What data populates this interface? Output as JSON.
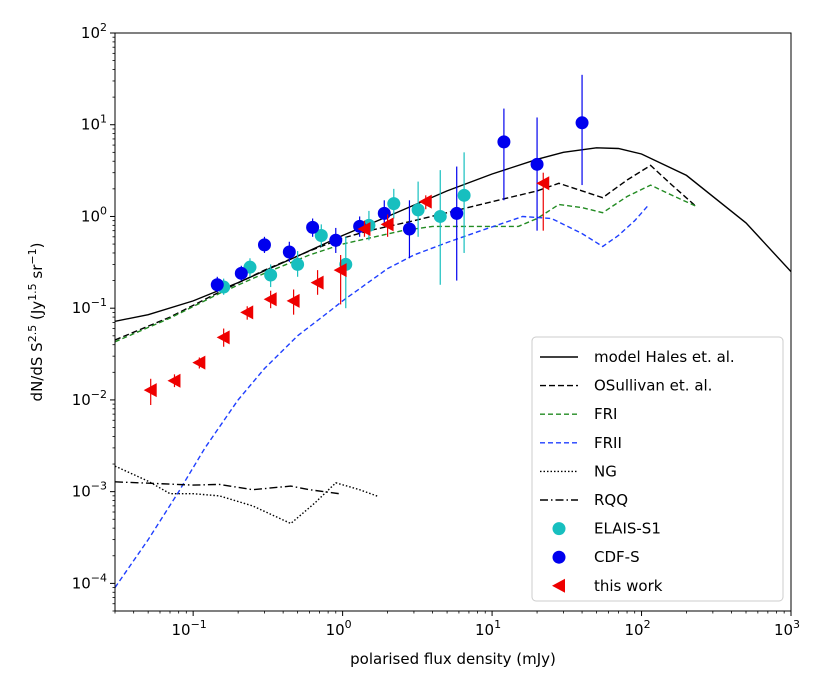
{
  "chart_data": {
    "type": "scatter",
    "x_scale": "log",
    "y_scale": "log",
    "xlim": [
      0.03,
      1000
    ],
    "ylim": [
      5e-05,
      100
    ],
    "xlabel": "polarised flux density (mJy)",
    "ylabel": "dN/dS S^2.5 (Jy^1.5 sr^-1)",
    "ylabel_parts": {
      "pre": "dN/dS S",
      "exp1": "2.5",
      "mid": " (Jy",
      "exp2": "1.5",
      "mid2": " sr",
      "exp3": "−1",
      "post": ")"
    },
    "x_ticks": [
      {
        "value": 0.1,
        "base": "10",
        "exp": "−1"
      },
      {
        "value": 1,
        "base": "10",
        "exp": "0"
      },
      {
        "value": 10,
        "base": "10",
        "exp": "1"
      },
      {
        "value": 100,
        "base": "10",
        "exp": "2"
      },
      {
        "value": 1000,
        "base": "10",
        "exp": "3"
      }
    ],
    "y_ticks": [
      {
        "value": 0.0001,
        "base": "10",
        "exp": "−4"
      },
      {
        "value": 0.001,
        "base": "10",
        "exp": "−3"
      },
      {
        "value": 0.01,
        "base": "10",
        "exp": "−2"
      },
      {
        "value": 0.1,
        "base": "10",
        "exp": "−1"
      },
      {
        "value": 1,
        "base": "10",
        "exp": "0"
      },
      {
        "value": 10,
        "base": "10",
        "exp": "1"
      },
      {
        "value": 100,
        "base": "10",
        "exp": "2"
      }
    ],
    "legend_position": "lower-right",
    "lines": [
      {
        "name": "model Hales et. al.",
        "key": "hales",
        "color": "#000000",
        "dash": "",
        "points": [
          [
            0.03,
            0.072
          ],
          [
            0.05,
            0.085
          ],
          [
            0.1,
            0.12
          ],
          [
            0.2,
            0.19
          ],
          [
            0.5,
            0.37
          ],
          [
            1,
            0.62
          ],
          [
            2,
            1.0
          ],
          [
            5,
            1.9
          ],
          [
            10,
            2.9
          ],
          [
            20,
            4.2
          ],
          [
            30,
            5.0
          ],
          [
            50,
            5.6
          ],
          [
            70,
            5.5
          ],
          [
            100,
            4.8
          ],
          [
            200,
            2.8
          ],
          [
            500,
            0.85
          ],
          [
            1000,
            0.25
          ]
        ]
      },
      {
        "name": "OSullivan et. al.",
        "key": "osullivan",
        "color": "#000000",
        "dash": "6,3",
        "points": [
          [
            0.03,
            0.045
          ],
          [
            0.07,
            0.08
          ],
          [
            0.15,
            0.15
          ],
          [
            0.3,
            0.26
          ],
          [
            0.6,
            0.42
          ],
          [
            1,
            0.58
          ],
          [
            1.5,
            0.7
          ],
          [
            3,
            0.9
          ],
          [
            5,
            1.1
          ],
          [
            10,
            1.45
          ],
          [
            20,
            1.9
          ],
          [
            28,
            2.3
          ],
          [
            40,
            1.9
          ],
          [
            55,
            1.6
          ],
          [
            80,
            2.5
          ],
          [
            115,
            3.6
          ],
          [
            160,
            2.2
          ],
          [
            230,
            1.3
          ]
        ]
      },
      {
        "name": "FRI",
        "key": "fri",
        "color": "#228b22",
        "dash": "5,3",
        "points": [
          [
            0.03,
            0.043
          ],
          [
            0.07,
            0.078
          ],
          [
            0.15,
            0.145
          ],
          [
            0.3,
            0.24
          ],
          [
            0.6,
            0.38
          ],
          [
            1,
            0.5
          ],
          [
            1.5,
            0.58
          ],
          [
            2.5,
            0.7
          ],
          [
            4,
            0.78
          ],
          [
            8,
            0.78
          ],
          [
            15,
            0.78
          ],
          [
            20,
            0.95
          ],
          [
            28,
            1.35
          ],
          [
            40,
            1.25
          ],
          [
            55,
            1.1
          ],
          [
            80,
            1.65
          ],
          [
            115,
            2.2
          ],
          [
            160,
            1.7
          ],
          [
            230,
            1.3
          ]
        ]
      },
      {
        "name": "FRII",
        "key": "frii",
        "color": "#1f3fff",
        "dash": "5,3",
        "points": [
          [
            0.03,
            9e-05
          ],
          [
            0.05,
            0.0003
          ],
          [
            0.08,
            0.001
          ],
          [
            0.12,
            0.003
          ],
          [
            0.2,
            0.01
          ],
          [
            0.3,
            0.022
          ],
          [
            0.5,
            0.05
          ],
          [
            0.8,
            0.09
          ],
          [
            1,
            0.12
          ],
          [
            2,
            0.27
          ],
          [
            3,
            0.38
          ],
          [
            5,
            0.52
          ],
          [
            8,
            0.68
          ],
          [
            12,
            0.85
          ],
          [
            16,
            1.0
          ],
          [
            25,
            0.95
          ],
          [
            40,
            0.65
          ],
          [
            55,
            0.47
          ],
          [
            70,
            0.62
          ],
          [
            90,
            0.9
          ],
          [
            110,
            1.3
          ]
        ]
      },
      {
        "name": "NG",
        "key": "ng",
        "color": "#000000",
        "dash": "1.5,2",
        "points": [
          [
            0.03,
            0.0019
          ],
          [
            0.05,
            0.0013
          ],
          [
            0.07,
            0.00095
          ],
          [
            0.1,
            0.00095
          ],
          [
            0.15,
            0.0009
          ],
          [
            0.25,
            0.0007
          ],
          [
            0.45,
            0.00045
          ],
          [
            0.65,
            0.00075
          ],
          [
            0.9,
            0.00125
          ],
          [
            1.3,
            0.00105
          ],
          [
            1.75,
            0.00088
          ]
        ]
      },
      {
        "name": "RQQ",
        "key": "rqq",
        "color": "#000000",
        "dash": "8,3,1.5,3",
        "points": [
          [
            0.03,
            0.00128
          ],
          [
            0.06,
            0.00122
          ],
          [
            0.1,
            0.00118
          ],
          [
            0.15,
            0.0012
          ],
          [
            0.25,
            0.00105
          ],
          [
            0.45,
            0.00115
          ],
          [
            0.6,
            0.00105
          ],
          [
            0.95,
            0.00095
          ]
        ]
      }
    ],
    "series": [
      {
        "name": "ELAIS-S1",
        "key": "elais",
        "color": "#17bfbf",
        "marker": "circle",
        "points": [
          {
            "x": 0.16,
            "y": 0.17,
            "lo": 0.14,
            "hi": 0.21
          },
          {
            "x": 0.24,
            "y": 0.28,
            "lo": 0.22,
            "hi": 0.35
          },
          {
            "x": 0.33,
            "y": 0.23,
            "lo": 0.17,
            "hi": 0.3
          },
          {
            "x": 0.5,
            "y": 0.3,
            "lo": 0.22,
            "hi": 0.42
          },
          {
            "x": 0.72,
            "y": 0.62,
            "lo": 0.47,
            "hi": 0.82
          },
          {
            "x": 1.05,
            "y": 0.3,
            "lo": 0.1,
            "hi": 0.6
          },
          {
            "x": 1.5,
            "y": 0.8,
            "lo": 0.55,
            "hi": 1.15
          },
          {
            "x": 2.2,
            "y": 1.38,
            "lo": 0.95,
            "hi": 2.0
          },
          {
            "x": 3.2,
            "y": 1.18,
            "lo": 0.6,
            "hi": 2.4
          },
          {
            "x": 4.5,
            "y": 1.0,
            "lo": 0.18,
            "hi": 3.2
          },
          {
            "x": 6.5,
            "y": 1.7,
            "lo": 0.4,
            "hi": 5.0
          }
        ]
      },
      {
        "name": "CDF-S",
        "key": "cdfs",
        "color": "#0000ee",
        "marker": "circle",
        "points": [
          {
            "x": 0.145,
            "y": 0.18,
            "lo": 0.15,
            "hi": 0.22
          },
          {
            "x": 0.21,
            "y": 0.24,
            "lo": 0.2,
            "hi": 0.29
          },
          {
            "x": 0.3,
            "y": 0.49,
            "lo": 0.4,
            "hi": 0.6
          },
          {
            "x": 0.44,
            "y": 0.41,
            "lo": 0.32,
            "hi": 0.53
          },
          {
            "x": 0.63,
            "y": 0.76,
            "lo": 0.6,
            "hi": 0.95
          },
          {
            "x": 0.9,
            "y": 0.55,
            "lo": 0.4,
            "hi": 0.75
          },
          {
            "x": 1.3,
            "y": 0.78,
            "lo": 0.6,
            "hi": 1.0
          },
          {
            "x": 1.9,
            "y": 1.08,
            "lo": 0.8,
            "hi": 1.5
          },
          {
            "x": 2.8,
            "y": 0.73,
            "lo": 0.35,
            "hi": 1.5
          },
          {
            "x": 5.8,
            "y": 1.08,
            "lo": 0.2,
            "hi": 3.5
          },
          {
            "x": 12,
            "y": 6.5,
            "lo": 1.5,
            "hi": 15
          },
          {
            "x": 20,
            "y": 3.7,
            "lo": 0.7,
            "hi": 12
          },
          {
            "x": 40,
            "y": 10.5,
            "lo": 2.2,
            "hi": 35
          }
        ]
      },
      {
        "name": "this work",
        "key": "thiswork",
        "color": "#ee0000",
        "marker": "triangle-left",
        "points": [
          {
            "x": 0.052,
            "y": 0.0128,
            "lo": 0.0088,
            "hi": 0.017
          },
          {
            "x": 0.075,
            "y": 0.0162,
            "lo": 0.0138,
            "hi": 0.019
          },
          {
            "x": 0.11,
            "y": 0.0255,
            "lo": 0.022,
            "hi": 0.029
          },
          {
            "x": 0.16,
            "y": 0.048,
            "lo": 0.038,
            "hi": 0.06
          },
          {
            "x": 0.23,
            "y": 0.09,
            "lo": 0.075,
            "hi": 0.105
          },
          {
            "x": 0.33,
            "y": 0.125,
            "lo": 0.1,
            "hi": 0.155
          },
          {
            "x": 0.47,
            "y": 0.12,
            "lo": 0.085,
            "hi": 0.16
          },
          {
            "x": 0.68,
            "y": 0.19,
            "lo": 0.14,
            "hi": 0.26
          },
          {
            "x": 0.97,
            "y": 0.26,
            "lo": 0.11,
            "hi": 0.38
          },
          {
            "x": 1.4,
            "y": 0.73,
            "lo": 0.6,
            "hi": 0.9
          },
          {
            "x": 2.0,
            "y": 0.82,
            "lo": 0.6,
            "hi": 1.05
          },
          {
            "x": 3.6,
            "y": 1.45,
            "lo": 1.2,
            "hi": 1.7
          },
          {
            "x": 22,
            "y": 2.3,
            "lo": 0.7,
            "hi": 3.0
          }
        ]
      }
    ]
  }
}
